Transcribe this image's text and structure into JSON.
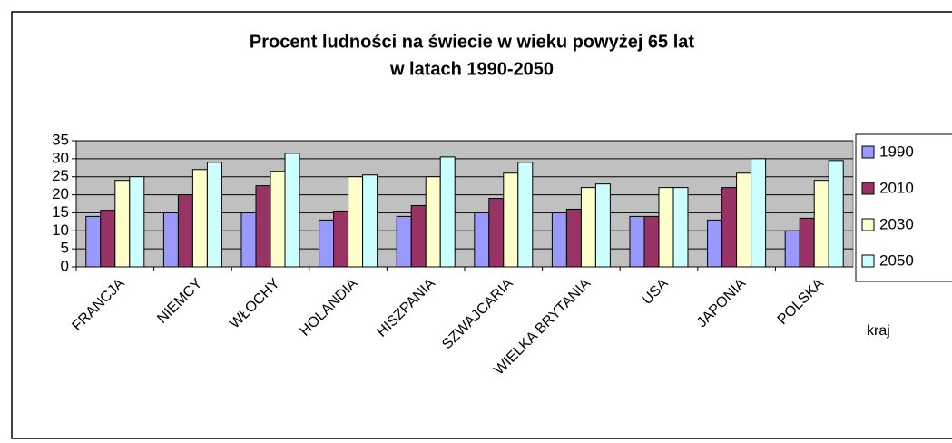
{
  "chart_data": {
    "type": "bar",
    "title": [
      "Procent ludności na świecie w wieku powyżej 65 lat",
      "w latach 1990-2050"
    ],
    "x_label": "kraj",
    "categories": [
      "FRANCJA",
      "NIEMCY",
      "WŁOCHY",
      "HOLANDIA",
      "HISZPANIA",
      "SZWAJCARIA",
      "WIELKA BRYTANIA",
      "USA",
      "JAPONIA",
      "POLSKA"
    ],
    "series": [
      {
        "name": "1990",
        "color": "#9999ff",
        "values": [
          14,
          15,
          15,
          13,
          14,
          15,
          15,
          14,
          13,
          10
        ]
      },
      {
        "name": "2010",
        "color": "#993366",
        "values": [
          15.7,
          20,
          22.5,
          15.5,
          17,
          19,
          16,
          14,
          22,
          13.5
        ]
      },
      {
        "name": "2030",
        "color": "#ffffcc",
        "values": [
          24,
          27,
          26.5,
          25,
          25,
          26,
          22,
          22,
          26,
          24
        ]
      },
      {
        "name": "2050",
        "color": "#ccffff",
        "values": [
          25,
          29,
          31.5,
          25.5,
          30.5,
          29,
          23,
          22,
          30,
          29.5
        ]
      }
    ],
    "ylim": [
      0,
      35
    ],
    "yticks": [
      0,
      5,
      10,
      15,
      20,
      25,
      30,
      35
    ],
    "grid": true,
    "legend": "right"
  }
}
